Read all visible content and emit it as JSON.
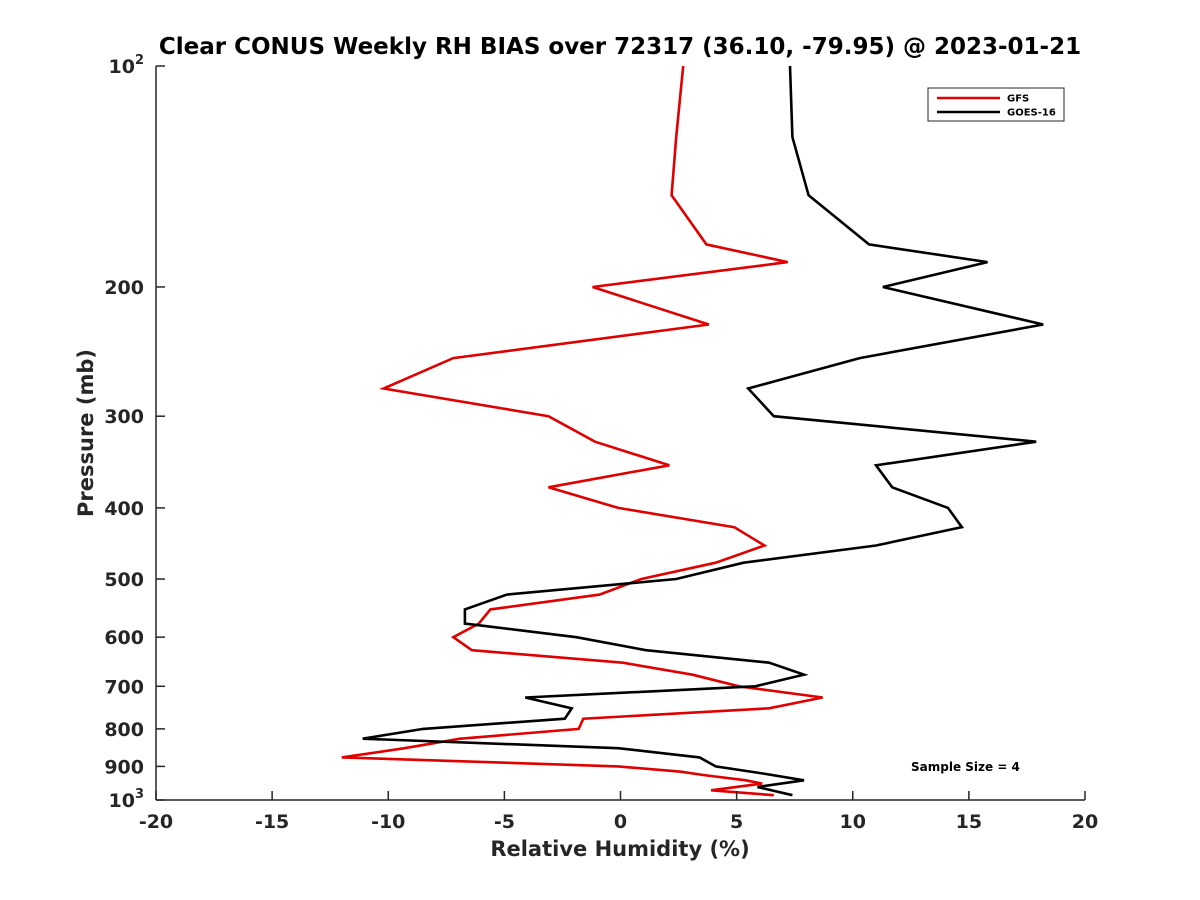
{
  "chart_data": {
    "type": "line",
    "title": "Clear CONUS Weekly RH BIAS over 72317 (36.10, -79.95) @ 2023-01-21",
    "xlabel": "Relative Humidity (%)",
    "ylabel": "Pressure (mb)",
    "xlim": [
      -20,
      20
    ],
    "ylim": [
      1000,
      100
    ],
    "y_scale": "log",
    "y_reversed": true,
    "x_ticks": [
      "-20",
      "-15",
      "-10",
      "-5",
      "0",
      "5",
      "10",
      "15",
      "20"
    ],
    "y_ticks": [
      {
        "value": 100,
        "base": "10",
        "exp": "2"
      },
      {
        "value": 200,
        "base": "200",
        "exp": ""
      },
      {
        "value": 300,
        "base": "300",
        "exp": ""
      },
      {
        "value": 400,
        "base": "400",
        "exp": ""
      },
      {
        "value": 500,
        "base": "500",
        "exp": ""
      },
      {
        "value": 600,
        "base": "600",
        "exp": ""
      },
      {
        "value": 700,
        "base": "700",
        "exp": ""
      },
      {
        "value": 800,
        "base": "800",
        "exp": ""
      },
      {
        "value": 900,
        "base": "900",
        "exp": ""
      },
      {
        "value": 1000,
        "base": "10",
        "exp": "3"
      }
    ],
    "grid": false,
    "legend_position": "top-right",
    "annotation": "Sample Size = 4",
    "series": [
      {
        "name": "GFS",
        "color": "#e00000",
        "points": [
          {
            "rh": 2.7,
            "p": 100
          },
          {
            "rh": 2.4,
            "p": 125
          },
          {
            "rh": 2.2,
            "p": 150
          },
          {
            "rh": 3.7,
            "p": 175
          },
          {
            "rh": 7.2,
            "p": 185
          },
          {
            "rh": -1.2,
            "p": 200
          },
          {
            "rh": 3.8,
            "p": 225
          },
          {
            "rh": -7.2,
            "p": 250
          },
          {
            "rh": -10.2,
            "p": 275
          },
          {
            "rh": -3.1,
            "p": 300
          },
          {
            "rh": -1.1,
            "p": 325
          },
          {
            "rh": 2.1,
            "p": 350
          },
          {
            "rh": -3.1,
            "p": 375
          },
          {
            "rh": -0.1,
            "p": 400
          },
          {
            "rh": 4.9,
            "p": 425
          },
          {
            "rh": 6.2,
            "p": 450
          },
          {
            "rh": 4.1,
            "p": 475
          },
          {
            "rh": 0.9,
            "p": 500
          },
          {
            "rh": -0.9,
            "p": 525
          },
          {
            "rh": -5.6,
            "p": 550
          },
          {
            "rh": -6.1,
            "p": 575
          },
          {
            "rh": -7.2,
            "p": 600
          },
          {
            "rh": -6.4,
            "p": 625
          },
          {
            "rh": 0.1,
            "p": 650
          },
          {
            "rh": 3.1,
            "p": 675
          },
          {
            "rh": 5.1,
            "p": 700
          },
          {
            "rh": 8.7,
            "p": 725
          },
          {
            "rh": 6.4,
            "p": 750
          },
          {
            "rh": -1.6,
            "p": 775
          },
          {
            "rh": -1.8,
            "p": 800
          },
          {
            "rh": -6.9,
            "p": 825
          },
          {
            "rh": -9.3,
            "p": 850
          },
          {
            "rh": -12.0,
            "p": 875
          },
          {
            "rh": -0.1,
            "p": 900
          },
          {
            "rh": 2.6,
            "p": 915
          },
          {
            "rh": 3.6,
            "p": 925
          },
          {
            "rh": 5.4,
            "p": 940
          },
          {
            "rh": 6.1,
            "p": 950
          },
          {
            "rh": 3.9,
            "p": 970
          },
          {
            "rh": 6.6,
            "p": 985
          }
        ]
      },
      {
        "name": "GOES-16",
        "color": "#000000",
        "points": [
          {
            "rh": 7.3,
            "p": 100
          },
          {
            "rh": 7.4,
            "p": 125
          },
          {
            "rh": 8.1,
            "p": 150
          },
          {
            "rh": 10.7,
            "p": 175
          },
          {
            "rh": 15.8,
            "p": 185
          },
          {
            "rh": 11.3,
            "p": 200
          },
          {
            "rh": 18.2,
            "p": 225
          },
          {
            "rh": 10.3,
            "p": 250
          },
          {
            "rh": 5.5,
            "p": 275
          },
          {
            "rh": 6.6,
            "p": 300
          },
          {
            "rh": 17.9,
            "p": 325
          },
          {
            "rh": 11.0,
            "p": 350
          },
          {
            "rh": 11.7,
            "p": 375
          },
          {
            "rh": 14.1,
            "p": 400
          },
          {
            "rh": 14.7,
            "p": 425
          },
          {
            "rh": 11.0,
            "p": 450
          },
          {
            "rh": 5.3,
            "p": 475
          },
          {
            "rh": 2.4,
            "p": 500
          },
          {
            "rh": -4.9,
            "p": 525
          },
          {
            "rh": -6.7,
            "p": 550
          },
          {
            "rh": -6.7,
            "p": 575
          },
          {
            "rh": -1.9,
            "p": 600
          },
          {
            "rh": 1.1,
            "p": 625
          },
          {
            "rh": 6.4,
            "p": 650
          },
          {
            "rh": 7.9,
            "p": 675
          },
          {
            "rh": 5.8,
            "p": 700
          },
          {
            "rh": -4.1,
            "p": 725
          },
          {
            "rh": -2.1,
            "p": 750
          },
          {
            "rh": -2.4,
            "p": 775
          },
          {
            "rh": -8.5,
            "p": 800
          },
          {
            "rh": -11.1,
            "p": 825
          },
          {
            "rh": -0.1,
            "p": 850
          },
          {
            "rh": 3.4,
            "p": 875
          },
          {
            "rh": 4.1,
            "p": 900
          },
          {
            "rh": 6.1,
            "p": 920
          },
          {
            "rh": 7.9,
            "p": 940
          },
          {
            "rh": 5.9,
            "p": 960
          },
          {
            "rh": 7.4,
            "p": 985
          }
        ]
      }
    ]
  }
}
